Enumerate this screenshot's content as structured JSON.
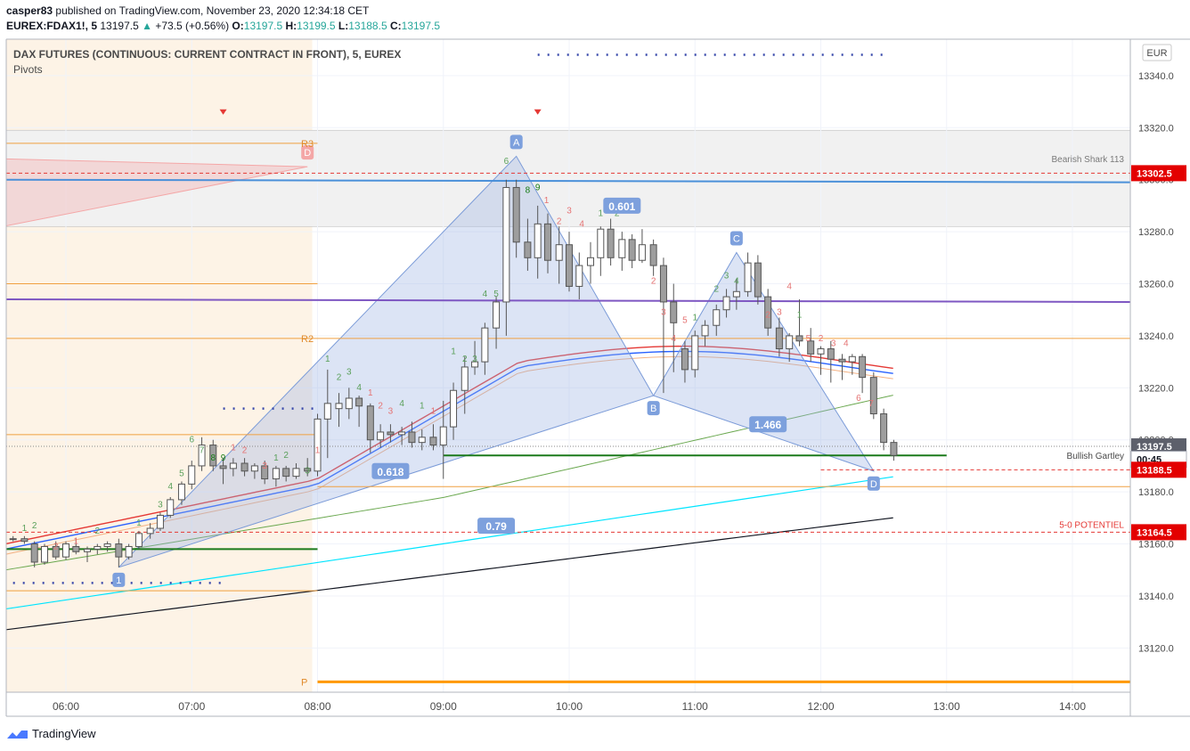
{
  "header": {
    "published_user": "casper83",
    "published_text": "published on TradingView.com, November 23, 2020 12:34:18 CET",
    "symbol": "EUREX:FDAX1!, 5",
    "last": "13197.5",
    "change_arrow": "▲",
    "change": "+73.5 (+0.56%)",
    "o_label": "O:",
    "o": "13197.5",
    "h_label": "H:",
    "h": "13199.5",
    "l_label": "L:",
    "l": "13188.5",
    "c_label": "C:",
    "c": "13197.5"
  },
  "chart_data": {
    "type": "candlestick",
    "title": "DAX FUTURES (CONTINUOUS: CURRENT CONTRACT IN FRONT), 5, EUREX",
    "subtitle": "Pivots",
    "currency": "EUR",
    "time_labels": [
      "06:00",
      "07:00",
      "08:00",
      "09:00",
      "10:00",
      "11:00",
      "12:00",
      "13:00",
      "14:00"
    ],
    "time_hours": [
      6,
      7,
      8,
      9,
      10,
      11,
      12,
      13,
      14
    ],
    "y_ticks": [
      13340,
      13320,
      13300,
      13280,
      13260,
      13240,
      13220,
      13200,
      13180,
      13160,
      13140,
      13120
    ],
    "y_tick_labels": [
      "13340.0",
      "13320.0",
      "13300.0",
      "13280.0",
      "13260.0",
      "13240.0",
      "13220.0",
      "13200.0",
      "13180.0",
      "13160.0",
      "13140.0",
      "13120.0"
    ],
    "ylim": [
      13103,
      13354
    ],
    "price_badges": [
      {
        "label": "13302.5",
        "value": 13302.5,
        "color": "#e30000"
      },
      {
        "label": "13197.5",
        "value": 13197.5,
        "color": "#5d606b"
      },
      {
        "label": "00:45",
        "value": 13192.5,
        "color": "#ffffff"
      },
      {
        "label": "13188.5",
        "value": 13188.5,
        "color": "#e30000"
      },
      {
        "label": "13164.5",
        "value": 13164.5,
        "color": "#e30000"
      }
    ],
    "candles": [
      [
        5.58,
        13162,
        13163,
        13161,
        13162
      ],
      [
        5.67,
        13162,
        13163,
        13160,
        13161
      ],
      [
        5.75,
        13160,
        13161,
        13151,
        13153
      ],
      [
        5.83,
        13153,
        13160,
        13152,
        13159
      ],
      [
        5.92,
        13159,
        13161,
        13154,
        13155
      ],
      [
        6.0,
        13155,
        13161,
        13154,
        13160
      ],
      [
        6.08,
        13159,
        13162,
        13156,
        13157
      ],
      [
        6.17,
        13157,
        13159,
        13153,
        13158
      ],
      [
        6.25,
        13158,
        13160,
        13156,
        13159
      ],
      [
        6.33,
        13159,
        13161,
        13157,
        13160
      ],
      [
        6.42,
        13160,
        13162,
        13151,
        13155
      ],
      [
        6.5,
        13155,
        13160,
        13154,
        13159
      ],
      [
        6.58,
        13159,
        13165,
        13158,
        13164
      ],
      [
        6.67,
        13164,
        13168,
        13162,
        13166
      ],
      [
        6.75,
        13166,
        13172,
        13165,
        13171
      ],
      [
        6.83,
        13171,
        13178,
        13170,
        13177
      ],
      [
        6.92,
        13177,
        13184,
        13175,
        13183
      ],
      [
        7.0,
        13183,
        13192,
        13181,
        13190
      ],
      [
        7.08,
        13190,
        13201,
        13188,
        13198
      ],
      [
        7.17,
        13198,
        13200,
        13188,
        13190
      ],
      [
        7.25,
        13190,
        13193,
        13183,
        13189
      ],
      [
        7.33,
        13189,
        13193,
        13186,
        13191
      ],
      [
        7.42,
        13191,
        13193,
        13186,
        13188
      ],
      [
        7.5,
        13188,
        13191,
        13185,
        13190
      ],
      [
        7.58,
        13190,
        13192,
        13183,
        13185
      ],
      [
        7.67,
        13185,
        13190,
        13182,
        13189
      ],
      [
        7.75,
        13189,
        13190,
        13184,
        13186
      ],
      [
        7.83,
        13186,
        13191,
        13185,
        13189
      ],
      [
        7.92,
        13189,
        13193,
        13186,
        13188
      ],
      [
        8.0,
        13188,
        13210,
        13186,
        13208
      ],
      [
        8.08,
        13208,
        13227,
        13193,
        13214
      ],
      [
        8.17,
        13212,
        13218,
        13205,
        13214
      ],
      [
        8.25,
        13212,
        13220,
        13208,
        13216
      ],
      [
        8.33,
        13216,
        13217,
        13205,
        13213
      ],
      [
        8.42,
        13213,
        13214,
        13195,
        13200
      ],
      [
        8.5,
        13200,
        13206,
        13197,
        13203
      ],
      [
        8.58,
        13203,
        13206,
        13199,
        13202
      ],
      [
        8.67,
        13202,
        13205,
        13198,
        13203
      ],
      [
        8.75,
        13203,
        13207,
        13197,
        13199
      ],
      [
        8.83,
        13199,
        13204,
        13196,
        13201
      ],
      [
        8.92,
        13201,
        13206,
        13196,
        13198
      ],
      [
        9.0,
        13198,
        13215,
        13185,
        13205
      ],
      [
        9.08,
        13205,
        13222,
        13200,
        13219
      ],
      [
        9.17,
        13219,
        13232,
        13210,
        13228
      ],
      [
        9.25,
        13228,
        13238,
        13225,
        13230
      ],
      [
        9.33,
        13230,
        13245,
        13225,
        13243
      ],
      [
        9.42,
        13243,
        13255,
        13235,
        13253
      ],
      [
        9.5,
        13253,
        13300,
        13240,
        13297
      ],
      [
        9.58,
        13297,
        13300,
        13270,
        13276
      ],
      [
        9.67,
        13276,
        13285,
        13265,
        13270
      ],
      [
        9.75,
        13270,
        13290,
        13262,
        13283
      ],
      [
        9.83,
        13283,
        13287,
        13264,
        13269
      ],
      [
        9.92,
        13269,
        13282,
        13260,
        13275
      ],
      [
        10.0,
        13275,
        13280,
        13257,
        13259
      ],
      [
        10.08,
        13259,
        13272,
        13254,
        13267
      ],
      [
        10.17,
        13267,
        13276,
        13260,
        13270
      ],
      [
        10.25,
        13270,
        13282,
        13263,
        13281
      ],
      [
        10.33,
        13281,
        13285,
        13267,
        13270
      ],
      [
        10.42,
        13270,
        13280,
        13265,
        13277
      ],
      [
        10.5,
        13277,
        13279,
        13266,
        13269
      ],
      [
        10.58,
        13269,
        13281,
        13268,
        13275
      ],
      [
        10.67,
        13275,
        13277,
        13263,
        13267
      ],
      [
        10.75,
        13267,
        13270,
        13218,
        13253
      ],
      [
        10.83,
        13253,
        13260,
        13226,
        13245
      ],
      [
        10.92,
        13235,
        13238,
        13222,
        13227
      ],
      [
        11.0,
        13227,
        13242,
        13224,
        13240
      ],
      [
        11.08,
        13240,
        13246,
        13236,
        13244
      ],
      [
        11.17,
        13244,
        13252,
        13240,
        13250
      ],
      [
        11.25,
        13250,
        13258,
        13247,
        13255
      ],
      [
        11.33,
        13255,
        13262,
        13250,
        13257
      ],
      [
        11.42,
        13257,
        13272,
        13255,
        13268
      ],
      [
        11.5,
        13268,
        13271,
        13252,
        13255
      ],
      [
        11.58,
        13255,
        13258,
        13240,
        13243
      ],
      [
        11.67,
        13243,
        13247,
        13232,
        13235
      ],
      [
        11.75,
        13235,
        13241,
        13230,
        13240
      ],
      [
        11.83,
        13240,
        13254,
        13236,
        13238
      ],
      [
        11.92,
        13238,
        13243,
        13230,
        13233
      ],
      [
        12.0,
        13233,
        13236,
        13225,
        13235
      ],
      [
        12.08,
        13235,
        13238,
        13222,
        13231
      ],
      [
        12.17,
        13231,
        13233,
        13223,
        13230
      ],
      [
        12.25,
        13230,
        13233,
        13225,
        13232
      ],
      [
        12.33,
        13232,
        13233,
        13218,
        13224
      ],
      [
        12.42,
        13224,
        13226,
        13208,
        13210
      ],
      [
        12.5,
        13210,
        13212,
        13196,
        13199
      ],
      [
        12.58,
        13199,
        13200,
        13192,
        13194
      ]
    ],
    "horizontal_lines": [
      {
        "label": "R3",
        "value": 13314
      },
      {
        "label": "R2",
        "value": 13239
      },
      {
        "label": "P",
        "value": 13107
      },
      {
        "label": "Bearish Shark 113",
        "value": 13302.5
      },
      {
        "label": "Bullish Gartley",
        "value": 13188.5
      },
      {
        "label": "5-0 POTENTIEL",
        "value": 13164.5
      }
    ],
    "pattern_points": [
      {
        "label": "A",
        "t": 9.58,
        "v": 13309
      },
      {
        "label": "B",
        "t": 10.67,
        "v": 13217
      },
      {
        "label": "C",
        "t": 11.33,
        "v": 13272
      },
      {
        "label": "D",
        "t": 12.42,
        "v": 13188
      },
      {
        "label": "D",
        "t": 7.92,
        "v": 13305
      },
      {
        "label": "1",
        "t": 6.42,
        "v": 13151
      }
    ],
    "ratios": [
      {
        "label": "0.601",
        "t": 10.42,
        "v": 13290
      },
      {
        "label": "0.618",
        "t": 8.58,
        "v": 13188
      },
      {
        "label": "1.466",
        "t": 11.58,
        "v": 13206
      },
      {
        "label": "0.79",
        "t": 9.42,
        "v": 13167
      }
    ],
    "td_counts": [
      {
        "t": 5.67,
        "v": 13165,
        "label": "1",
        "c": "g"
      },
      {
        "t": 5.75,
        "v": 13166,
        "label": "2",
        "c": "g"
      },
      {
        "t": 5.92,
        "v": 13158,
        "label": "2",
        "c": "r"
      },
      {
        "t": 6.08,
        "v": 13160,
        "label": "1",
        "c": "r"
      },
      {
        "t": 6.25,
        "v": 13164,
        "label": "2",
        "c": "g"
      },
      {
        "t": 6.58,
        "v": 13167,
        "label": "1",
        "c": "g"
      },
      {
        "t": 6.75,
        "v": 13174,
        "label": "3",
        "c": "g"
      },
      {
        "t": 6.83,
        "v": 13181,
        "label": "4",
        "c": "g"
      },
      {
        "t": 6.92,
        "v": 13186,
        "label": "5",
        "c": "g"
      },
      {
        "t": 7.0,
        "v": 13199,
        "label": "6",
        "c": "g"
      },
      {
        "t": 7.08,
        "v": 13195,
        "label": "7",
        "c": "g"
      },
      {
        "t": 7.17,
        "v": 13192,
        "label": "8",
        "c": "dg"
      },
      {
        "t": 7.25,
        "v": 13192,
        "label": "9",
        "c": "dg"
      },
      {
        "t": 7.33,
        "v": 13196,
        "label": "1",
        "c": "r"
      },
      {
        "t": 7.42,
        "v": 13195,
        "label": "2",
        "c": "r"
      },
      {
        "t": 7.58,
        "v": 13189,
        "label": "3",
        "c": "r"
      },
      {
        "t": 7.67,
        "v": 13192,
        "label": "1",
        "c": "g"
      },
      {
        "t": 7.75,
        "v": 13193,
        "label": "2",
        "c": "g"
      },
      {
        "t": 7.92,
        "v": 13187,
        "label": "3",
        "c": "g"
      },
      {
        "t": 8.0,
        "v": 13195,
        "label": "1",
        "c": "r"
      },
      {
        "t": 8.08,
        "v": 13230,
        "label": "1",
        "c": "g"
      },
      {
        "t": 8.17,
        "v": 13223,
        "label": "2",
        "c": "g"
      },
      {
        "t": 8.25,
        "v": 13225,
        "label": "3",
        "c": "g"
      },
      {
        "t": 8.33,
        "v": 13219,
        "label": "4",
        "c": "g"
      },
      {
        "t": 8.42,
        "v": 13217,
        "label": "1",
        "c": "r"
      },
      {
        "t": 8.5,
        "v": 13212,
        "label": "2",
        "c": "r"
      },
      {
        "t": 8.58,
        "v": 13210,
        "label": "3",
        "c": "r"
      },
      {
        "t": 8.67,
        "v": 13213,
        "label": "4",
        "c": "g"
      },
      {
        "t": 8.83,
        "v": 13212,
        "label": "1",
        "c": "g"
      },
      {
        "t": 8.92,
        "v": 13210,
        "label": "1",
        "c": "r"
      },
      {
        "t": 9.08,
        "v": 13233,
        "label": "1",
        "c": "g"
      },
      {
        "t": 9.17,
        "v": 13230,
        "label": "2",
        "c": "g"
      },
      {
        "t": 9.25,
        "v": 13230,
        "label": "3",
        "c": "g"
      },
      {
        "t": 9.33,
        "v": 13255,
        "label": "4",
        "c": "g"
      },
      {
        "t": 9.42,
        "v": 13255,
        "label": "5",
        "c": "g"
      },
      {
        "t": 9.5,
        "v": 13306,
        "label": "6",
        "c": "g"
      },
      {
        "t": 9.67,
        "v": 13295,
        "label": "8",
        "c": "dg"
      },
      {
        "t": 9.75,
        "v": 13296,
        "label": "9",
        "c": "dg"
      },
      {
        "t": 9.82,
        "v": 13291,
        "label": "1",
        "c": "r"
      },
      {
        "t": 9.92,
        "v": 13283,
        "label": "2",
        "c": "r"
      },
      {
        "t": 10.0,
        "v": 13287,
        "label": "3",
        "c": "r"
      },
      {
        "t": 10.1,
        "v": 13282,
        "label": "4",
        "c": "r"
      },
      {
        "t": 10.25,
        "v": 13286,
        "label": "1",
        "c": "g"
      },
      {
        "t": 10.38,
        "v": 13286,
        "label": "2",
        "c": "g"
      },
      {
        "t": 10.67,
        "v": 13260,
        "label": "2",
        "c": "r"
      },
      {
        "t": 10.75,
        "v": 13248,
        "label": "3",
        "c": "r"
      },
      {
        "t": 10.83,
        "v": 13238,
        "label": "4",
        "c": "r"
      },
      {
        "t": 10.92,
        "v": 13245,
        "label": "5",
        "c": "r"
      },
      {
        "t": 11.0,
        "v": 13246,
        "label": "1",
        "c": "g"
      },
      {
        "t": 11.17,
        "v": 13257,
        "label": "2",
        "c": "g"
      },
      {
        "t": 11.25,
        "v": 13262,
        "label": "3",
        "c": "g"
      },
      {
        "t": 11.33,
        "v": 13260,
        "label": "4",
        "c": "g"
      },
      {
        "t": 11.58,
        "v": 13247,
        "label": "2",
        "c": "r"
      },
      {
        "t": 11.67,
        "v": 13248,
        "label": "3",
        "c": "r"
      },
      {
        "t": 11.75,
        "v": 13258,
        "label": "4",
        "c": "r"
      },
      {
        "t": 11.9,
        "v": 13238,
        "label": "5",
        "c": "r"
      },
      {
        "t": 12.0,
        "v": 13238,
        "label": "2",
        "c": "r"
      },
      {
        "t": 12.1,
        "v": 13236,
        "label": "3",
        "c": "r"
      },
      {
        "t": 12.2,
        "v": 13236,
        "label": "4",
        "c": "r"
      },
      {
        "t": 12.3,
        "v": 13215,
        "label": "6",
        "c": "r"
      },
      {
        "t": 12.4,
        "v": 13213,
        "label": "7",
        "c": "r"
      },
      {
        "t": 11.83,
        "v": 13247,
        "label": "1",
        "c": "g"
      }
    ],
    "legend_position": "top-left"
  }
}
